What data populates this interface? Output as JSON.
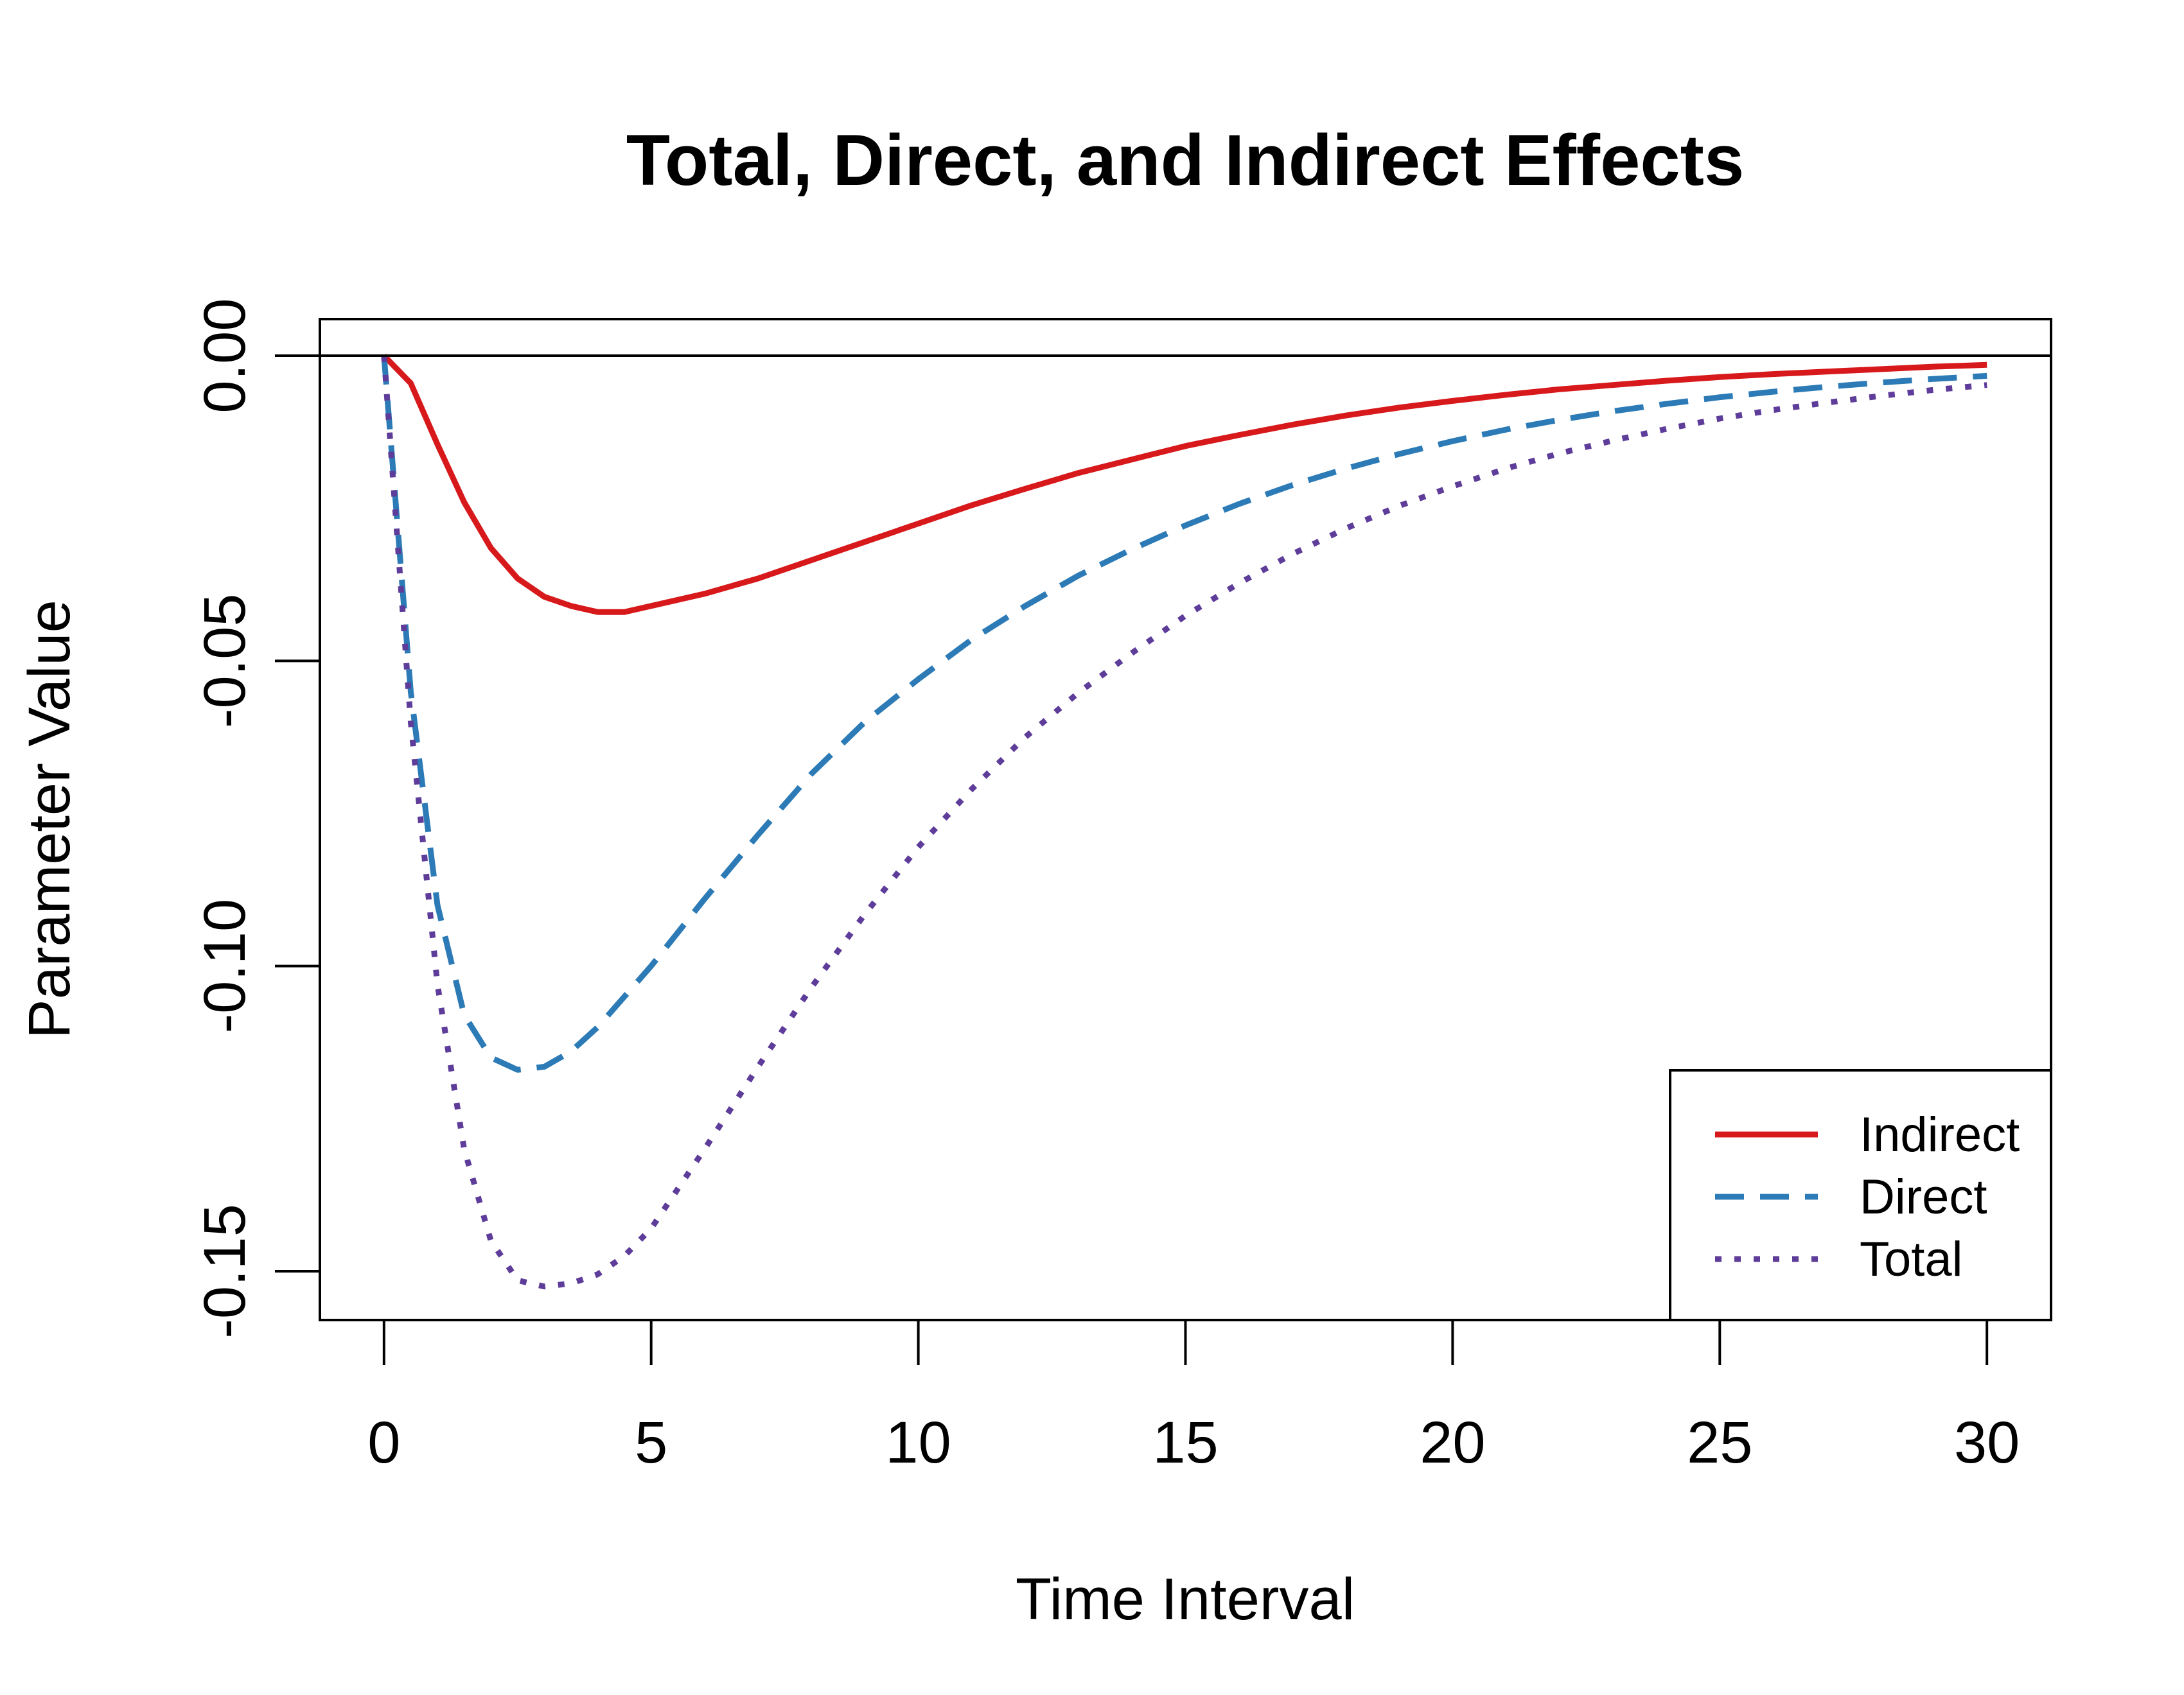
{
  "chart_data": {
    "type": "line",
    "title": "Total, Direct, and Indirect Effects",
    "xlabel": "Time Interval",
    "ylabel": "Parameter Value",
    "xlim": [
      -1.2,
      31.2
    ],
    "ylim": [
      -0.158,
      0.006
    ],
    "x_ticks": [
      0,
      5,
      10,
      15,
      20,
      25,
      30
    ],
    "x_tick_labels": [
      "0",
      "5",
      "10",
      "15",
      "20",
      "25",
      "30"
    ],
    "y_ticks": [
      -0.15,
      -0.1,
      -0.05,
      0.0
    ],
    "y_tick_labels": [
      "-0.15",
      "-0.10",
      "-0.05",
      "0.00"
    ],
    "reference_line_y": 0,
    "legend_position": "bottom-right",
    "x": [
      0,
      0.5,
      1,
      1.5,
      2,
      2.5,
      3,
      3.5,
      4,
      4.5,
      5,
      6,
      7,
      8,
      9,
      10,
      11,
      12,
      13,
      14,
      15,
      16,
      17,
      18,
      19,
      20,
      21,
      22,
      23,
      24,
      25,
      26,
      27,
      28,
      29,
      30
    ],
    "series": [
      {
        "name": "Indirect",
        "color": "#d7191c",
        "dash": "solid",
        "values": [
          0.0,
          -0.0045,
          -0.0145,
          -0.024,
          -0.0315,
          -0.0365,
          -0.0395,
          -0.041,
          -0.042,
          -0.042,
          -0.041,
          -0.039,
          -0.0365,
          -0.0335,
          -0.0305,
          -0.0275,
          -0.0245,
          -0.0218,
          -0.0192,
          -0.017,
          -0.0148,
          -0.013,
          -0.0113,
          -0.0098,
          -0.0085,
          -0.0074,
          -0.0064,
          -0.0055,
          -0.0048,
          -0.0041,
          -0.0035,
          -0.003,
          -0.0026,
          -0.0022,
          -0.0018,
          -0.0015
        ]
      },
      {
        "name": "Direct",
        "color": "#2c7bb6",
        "dash": "dashed",
        "values": [
          0.0,
          -0.055,
          -0.09,
          -0.108,
          -0.115,
          -0.117,
          -0.1165,
          -0.114,
          -0.11,
          -0.105,
          -0.1,
          -0.089,
          -0.0785,
          -0.0685,
          -0.06,
          -0.053,
          -0.0465,
          -0.041,
          -0.036,
          -0.0317,
          -0.0278,
          -0.0243,
          -0.0212,
          -0.0185,
          -0.0161,
          -0.014,
          -0.0121,
          -0.0105,
          -0.0091,
          -0.0079,
          -0.0068,
          -0.0059,
          -0.0051,
          -0.0044,
          -0.0038,
          -0.0033
        ]
      },
      {
        "name": "Total",
        "color": "#5e3c99",
        "dash": "dotted",
        "values": [
          0.0,
          -0.06,
          -0.103,
          -0.13,
          -0.145,
          -0.1515,
          -0.1525,
          -0.152,
          -0.1505,
          -0.1475,
          -0.143,
          -0.13,
          -0.1165,
          -0.1035,
          -0.0915,
          -0.0805,
          -0.071,
          -0.0625,
          -0.0552,
          -0.0487,
          -0.0426,
          -0.0373,
          -0.0325,
          -0.0283,
          -0.0246,
          -0.0214,
          -0.0185,
          -0.016,
          -0.0139,
          -0.012,
          -0.0103,
          -0.0089,
          -0.0077,
          -0.0066,
          -0.0056,
          -0.0048
        ]
      }
    ]
  }
}
